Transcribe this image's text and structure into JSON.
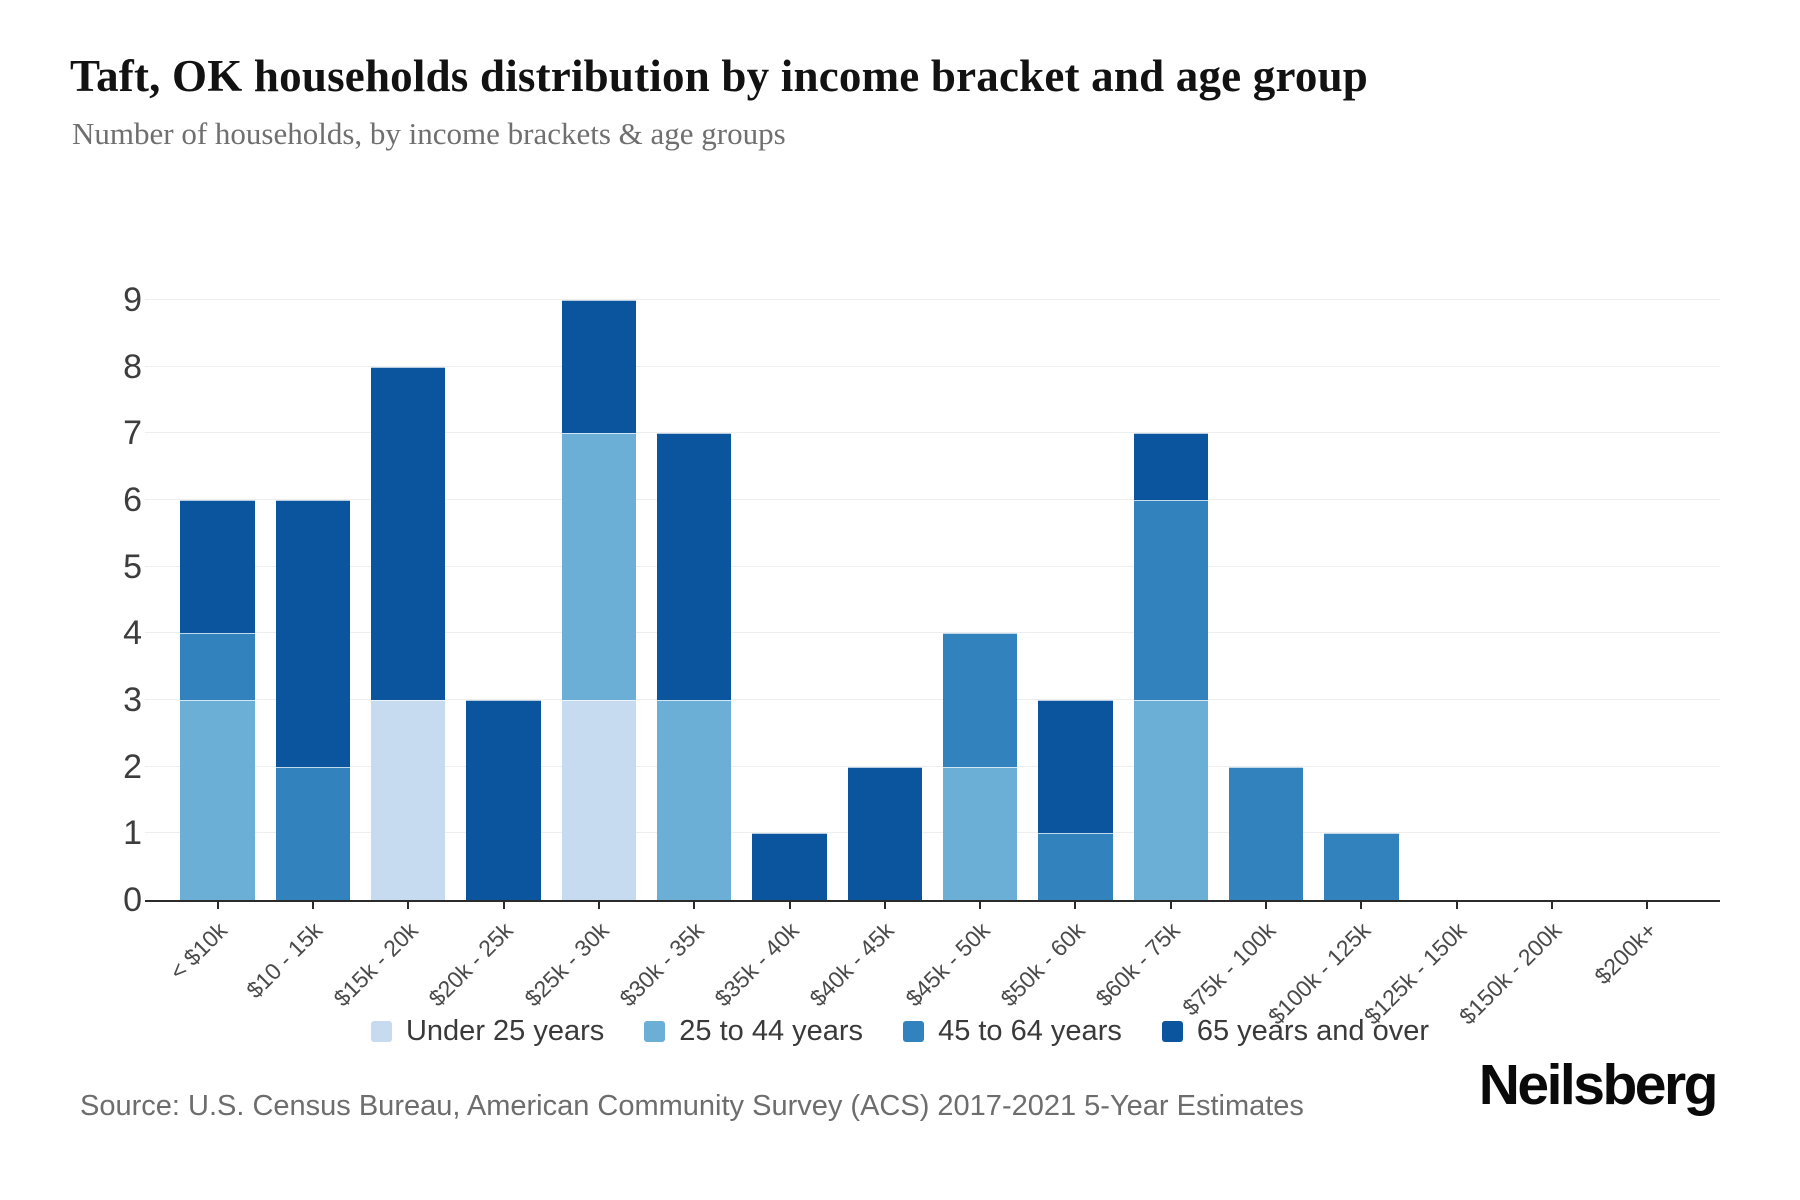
{
  "chart_data": {
    "type": "bar",
    "stacked": true,
    "title": "Taft, OK households distribution by income bracket and age group",
    "subtitle": "Number of households, by income brackets & age groups",
    "categories": [
      "< $10k",
      "$10 - 15k",
      "$15k - 20k",
      "$20k - 25k",
      "$25k - 30k",
      "$30k - 35k",
      "$35k - 40k",
      "$40k - 45k",
      "$45k - 50k",
      "$50k - 60k",
      "$60k - 75k",
      "$75k - 100k",
      "$100k - 125k",
      "$125k - 150k",
      "$150k - 200k",
      "$200k+"
    ],
    "series": [
      {
        "name": "Under 25 years",
        "color": "#c6dbef",
        "values": [
          0,
          0,
          3,
          0,
          3,
          0,
          0,
          0,
          0,
          0,
          0,
          0,
          0,
          0,
          0,
          0
        ]
      },
      {
        "name": "25 to 44 years",
        "color": "#6baed6",
        "values": [
          3,
          0,
          0,
          0,
          4,
          3,
          0,
          0,
          2,
          0,
          3,
          0,
          0,
          0,
          0,
          0
        ]
      },
      {
        "name": "45 to 64 years",
        "color": "#3182bd",
        "values": [
          1,
          2,
          0,
          0,
          0,
          0,
          0,
          0,
          2,
          1,
          3,
          2,
          1,
          0,
          0,
          0
        ]
      },
      {
        "name": "65 years and over",
        "color": "#0b559f",
        "values": [
          2,
          4,
          5,
          3,
          2,
          4,
          1,
          2,
          0,
          2,
          1,
          0,
          0,
          0,
          0,
          0
        ]
      }
    ],
    "totals": [
      6,
      6,
      8,
      3,
      9,
      7,
      1,
      2,
      4,
      3,
      7,
      2,
      1,
      0,
      0,
      0
    ],
    "ylim": [
      0,
      9
    ],
    "yticks": [
      0,
      1,
      2,
      3,
      4,
      5,
      6,
      7,
      8,
      9
    ],
    "grid": "horizontal",
    "legend_position": "bottom",
    "axis_color": "#2b2b2b",
    "gridline_color": "#eeeeee"
  },
  "footer": {
    "source": "Source: U.S. Census Bureau, American Community Survey (ACS) 2017-2021 5-Year Estimates",
    "logo": "Neilsberg"
  }
}
